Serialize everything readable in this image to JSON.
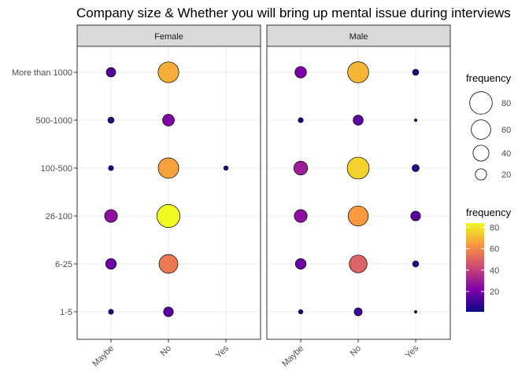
{
  "chart_data": {
    "type": "scatter",
    "title": "Company size & Whether you will bring up mental issue during interviews",
    "x_categories": [
      "Maybe",
      "No",
      "Yes"
    ],
    "y_categories": [
      "1-5",
      "6-25",
      "26-100",
      "100-500",
      "500-1000",
      "More than 1000"
    ],
    "panels": [
      {
        "name": "Female",
        "points": [
          {
            "x": "Maybe",
            "y": "More than 1000",
            "frequency": 14
          },
          {
            "x": "No",
            "y": "More than 1000",
            "frequency": 68
          },
          {
            "x": "Maybe",
            "y": "500-1000",
            "frequency": 6
          },
          {
            "x": "No",
            "y": "500-1000",
            "frequency": 22
          },
          {
            "x": "Maybe",
            "y": "100-500",
            "frequency": 4
          },
          {
            "x": "No",
            "y": "100-500",
            "frequency": 66
          },
          {
            "x": "Yes",
            "y": "100-500",
            "frequency": 3
          },
          {
            "x": "Maybe",
            "y": "26-100",
            "frequency": 26
          },
          {
            "x": "No",
            "y": "26-100",
            "frequency": 84
          },
          {
            "x": "Maybe",
            "y": "6-25",
            "frequency": 18
          },
          {
            "x": "No",
            "y": "6-25",
            "frequency": 56
          },
          {
            "x": "Maybe",
            "y": "1-5",
            "frequency": 4
          },
          {
            "x": "No",
            "y": "1-5",
            "frequency": 15
          }
        ]
      },
      {
        "name": "Male",
        "points": [
          {
            "x": "Maybe",
            "y": "More than 1000",
            "frequency": 21
          },
          {
            "x": "No",
            "y": "More than 1000",
            "frequency": 70
          },
          {
            "x": "Yes",
            "y": "More than 1000",
            "frequency": 6
          },
          {
            "x": "Maybe",
            "y": "500-1000",
            "frequency": 4
          },
          {
            "x": "No",
            "y": "500-1000",
            "frequency": 16
          },
          {
            "x": "Yes",
            "y": "500-1000",
            "frequency": 1
          },
          {
            "x": "Maybe",
            "y": "100-500",
            "frequency": 30
          },
          {
            "x": "No",
            "y": "100-500",
            "frequency": 76
          },
          {
            "x": "Yes",
            "y": "100-500",
            "frequency": 8
          },
          {
            "x": "Maybe",
            "y": "26-100",
            "frequency": 26
          },
          {
            "x": "No",
            "y": "26-100",
            "frequency": 64
          },
          {
            "x": "Yes",
            "y": "26-100",
            "frequency": 15
          },
          {
            "x": "Maybe",
            "y": "6-25",
            "frequency": 18
          },
          {
            "x": "No",
            "y": "6-25",
            "frequency": 50
          },
          {
            "x": "Yes",
            "y": "6-25",
            "frequency": 6
          },
          {
            "x": "Maybe",
            "y": "1-5",
            "frequency": 3
          },
          {
            "x": "No",
            "y": "1-5",
            "frequency": 10
          },
          {
            "x": "Yes",
            "y": "1-5",
            "frequency": 1
          }
        ]
      }
    ],
    "size_legend": {
      "title": "frequency",
      "breaks": [
        80,
        60,
        40,
        20
      ]
    },
    "color_legend": {
      "title": "frequency",
      "breaks": [
        80,
        60,
        40,
        20
      ],
      "range": [
        1,
        84
      ],
      "palette": "plasma"
    },
    "grid": true
  }
}
